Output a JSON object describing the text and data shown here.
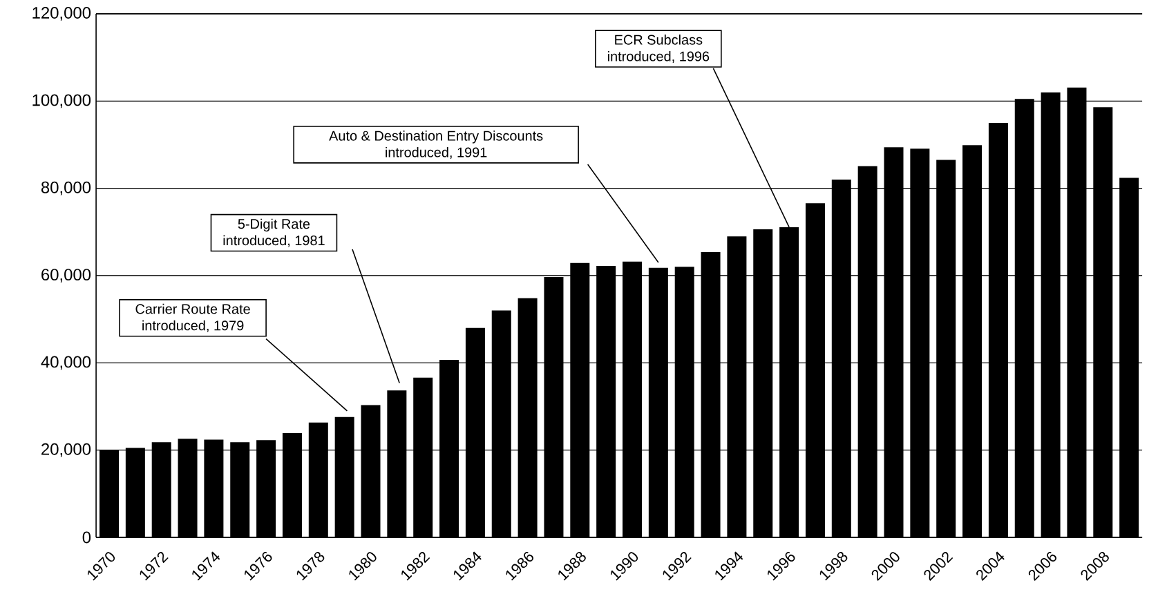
{
  "chart_data": {
    "type": "bar",
    "categories": [
      "1970",
      null,
      "1972",
      null,
      "1974",
      null,
      "1976",
      null,
      "1978",
      null,
      "1980",
      null,
      "1982",
      null,
      "1984",
      null,
      "1986",
      null,
      "1988",
      null,
      "1990",
      null,
      "1992",
      null,
      "1994",
      null,
      "1996",
      null,
      "1998",
      null,
      "2000",
      null,
      "2002",
      null,
      "2004",
      null,
      "2006",
      null,
      "2008",
      null
    ],
    "values": [
      20000,
      20500,
      21800,
      22600,
      22400,
      21800,
      22300,
      23900,
      26300,
      27600,
      30300,
      33700,
      36600,
      40700,
      48000,
      52000,
      54800,
      59700,
      62900,
      62200,
      63200,
      61800,
      62000,
      65400,
      69000,
      70600,
      71100,
      76600,
      82000,
      85100,
      89400,
      89100,
      86500,
      89900,
      95000,
      100500,
      102000,
      103100,
      98600,
      82400
    ],
    "color": "#000000",
    "ylim": [
      0,
      120000
    ],
    "yticks": [
      0,
      {
        "value": 20000,
        "label": "20,000"
      },
      {
        "value": 40000,
        "label": "40,000"
      },
      {
        "value": 60000,
        "label": "60,000"
      },
      {
        "value": 80000,
        "label": "80,000"
      },
      {
        "value": 100000,
        "label": "100,000"
      },
      {
        "value": 120000,
        "label": "120,000"
      }
    ],
    "grid": "y",
    "annotations": [
      "Carrier Route Rate introduced, 1979",
      "5-Digit Rate introduced, 1981",
      "Auto & Destination Entry Discounts introduced, 1991",
      {
        "text": "ECR Subclass introduced, 1996",
        "x": "1996",
        "y": 71100
      }
    ]
  }
}
